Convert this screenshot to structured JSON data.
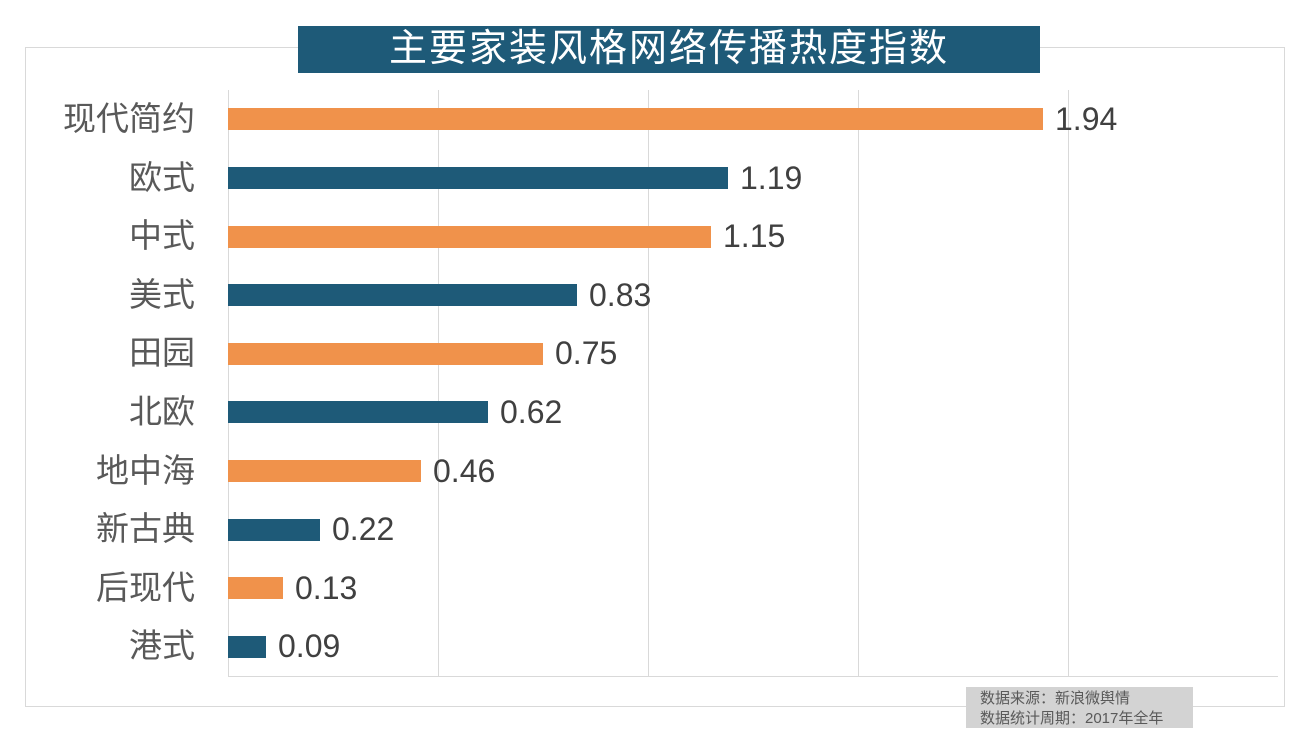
{
  "title": {
    "text": "主要家装风格网络传播热度指数"
  },
  "source_note": {
    "line1": "数据来源：新浪微舆情",
    "line2": "数据统计周期：2017年全年"
  },
  "colors": {
    "accent_orange": "#F0924B",
    "accent_blue": "#1E5A78",
    "title_bg": "#1E5A78",
    "title_text": "#FFFFFF",
    "grid": "#D9D9D9",
    "frame_border": "#D9D9D9",
    "category_text": "#595959",
    "value_text": "#404040",
    "source_bg": "#D3D3D3",
    "source_text": "#595959"
  },
  "chart_data": {
    "type": "bar",
    "orientation": "horizontal",
    "title": "主要家装风格网络传播热度指数",
    "categories": [
      "现代简约",
      "欧式",
      "中式",
      "美式",
      "田园",
      "北欧",
      "地中海",
      "新古典",
      "后现代",
      "港式"
    ],
    "values": [
      1.94,
      1.19,
      1.15,
      0.83,
      0.75,
      0.62,
      0.46,
      0.22,
      0.13,
      0.09
    ],
    "value_labels": [
      "1.94",
      "1.19",
      "1.15",
      "0.83",
      "0.75",
      "0.62",
      "0.46",
      "0.22",
      "0.13",
      "0.09"
    ],
    "bar_palette": [
      "#F0924B",
      "#1E5A78"
    ],
    "xlim": [
      0,
      2.5
    ],
    "gridline_values": [
      0,
      0.5,
      1.0,
      1.5,
      2.0
    ],
    "grid": true,
    "legend": "none",
    "value_labels_position": "outside-end"
  }
}
